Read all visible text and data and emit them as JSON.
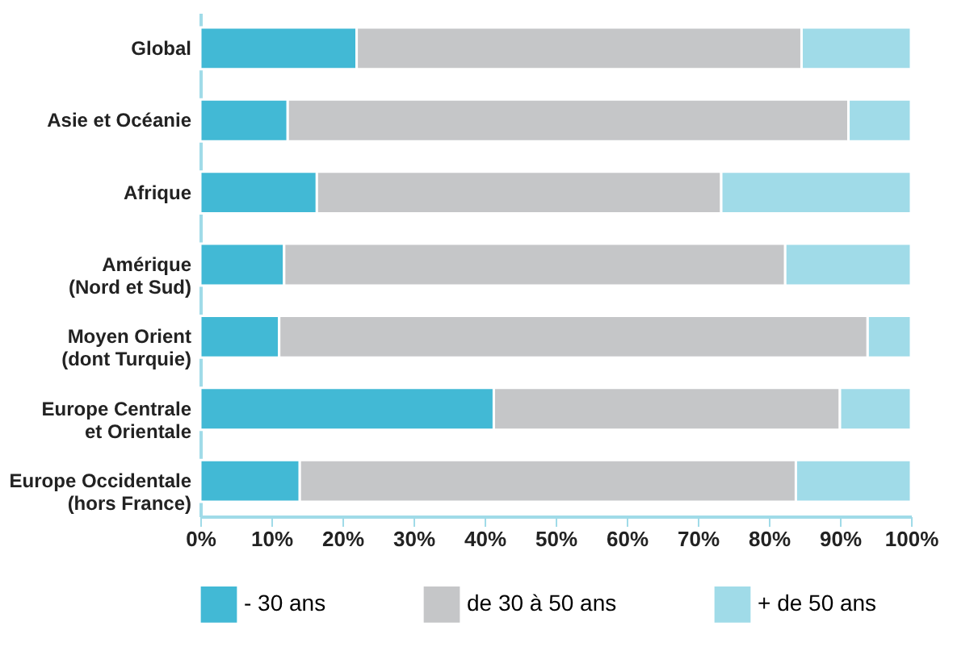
{
  "chart_data": {
    "type": "bar",
    "orientation": "horizontal",
    "stacked": true,
    "categories": [
      "Global",
      "Asie et Océanie",
      "Afrique",
      "Amérique\n(Nord et Sud)",
      "Moyen Orient\n(dont Turquie)",
      "Europe Centrale\net Orientale",
      "Europe Occidentale\n(hors France)"
    ],
    "series": [
      {
        "name": "- 30 ans",
        "color": "#42b9d5",
        "values": [
          22.0,
          12.3,
          16.4,
          11.8,
          11.1,
          41.3,
          14.0
        ]
      },
      {
        "name": "de 30 à 50 ans",
        "color": "#c5c6c8",
        "values": [
          62.6,
          78.9,
          56.9,
          70.5,
          82.8,
          48.7,
          69.8
        ]
      },
      {
        "name": "+ de 50 ans",
        "color": "#a0dbe8",
        "values": [
          15.4,
          8.8,
          26.7,
          17.7,
          6.1,
          10.0,
          16.2
        ]
      }
    ],
    "xlim": [
      0,
      100
    ],
    "xticks": [
      {
        "value": 0,
        "label": "0%"
      },
      {
        "value": 10,
        "label": "10%"
      },
      {
        "value": 20,
        "label": "20%"
      },
      {
        "value": 30,
        "label": "30%"
      },
      {
        "value": 40,
        "label": "40%"
      },
      {
        "value": 50,
        "label": "50%"
      },
      {
        "value": 60,
        "label": "60%"
      },
      {
        "value": 70,
        "label": "70%"
      },
      {
        "value": 80,
        "label": "80%"
      },
      {
        "value": 90,
        "label": "90%"
      },
      {
        "value": 100,
        "label": "100%"
      }
    ],
    "grid": false,
    "legend": "bottom"
  }
}
